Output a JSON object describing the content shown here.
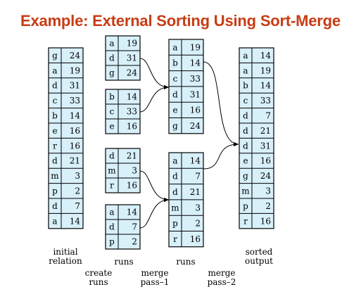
{
  "title": "Example: External Sorting Using Sort-Merge",
  "tables": {
    "initial_relation": [
      [
        "g",
        "24"
      ],
      [
        "a",
        "19"
      ],
      [
        "d",
        "31"
      ],
      [
        "c",
        "33"
      ],
      [
        "b",
        "14"
      ],
      [
        "e",
        "16"
      ],
      [
        "r",
        "16"
      ],
      [
        "d",
        "21"
      ],
      [
        "m",
        "3"
      ],
      [
        "p",
        "2"
      ],
      [
        "d",
        "7"
      ],
      [
        "a",
        "14"
      ]
    ],
    "run1": [
      [
        "a",
        "19"
      ],
      [
        "d",
        "31"
      ],
      [
        "g",
        "24"
      ]
    ],
    "run2": [
      [
        "b",
        "14"
      ],
      [
        "c",
        "33"
      ],
      [
        "e",
        "16"
      ]
    ],
    "run3": [
      [
        "d",
        "21"
      ],
      [
        "m",
        "3"
      ],
      [
        "r",
        "16"
      ]
    ],
    "run4": [
      [
        "a",
        "14"
      ],
      [
        "d",
        "7"
      ],
      [
        "p",
        "2"
      ]
    ],
    "merged1": [
      [
        "a",
        "19"
      ],
      [
        "b",
        "14"
      ],
      [
        "c",
        "33"
      ],
      [
        "d",
        "31"
      ],
      [
        "e",
        "16"
      ],
      [
        "g",
        "24"
      ]
    ],
    "merged2": [
      [
        "a",
        "14"
      ],
      [
        "d",
        "7"
      ],
      [
        "d",
        "21"
      ],
      [
        "m",
        "3"
      ],
      [
        "p",
        "2"
      ],
      [
        "r",
        "16"
      ]
    ],
    "sorted_output": [
      [
        "a",
        "14"
      ],
      [
        "a",
        "19"
      ],
      [
        "b",
        "14"
      ],
      [
        "c",
        "33"
      ],
      [
        "d",
        "7"
      ],
      [
        "d",
        "21"
      ],
      [
        "d",
        "31"
      ],
      [
        "e",
        "16"
      ],
      [
        "g",
        "24"
      ],
      [
        "m",
        "3"
      ],
      [
        "p",
        "2"
      ],
      [
        "r",
        "16"
      ]
    ]
  },
  "labels": {
    "initial": [
      "initial",
      "relation"
    ],
    "runs1": [
      "runs"
    ],
    "runs2": [
      "runs"
    ],
    "sorted": [
      "sorted",
      "output"
    ],
    "create": [
      "create",
      "runs"
    ],
    "pass1": [
      "merge",
      "pass–1"
    ],
    "pass2": [
      "merge",
      "pass–2"
    ]
  }
}
